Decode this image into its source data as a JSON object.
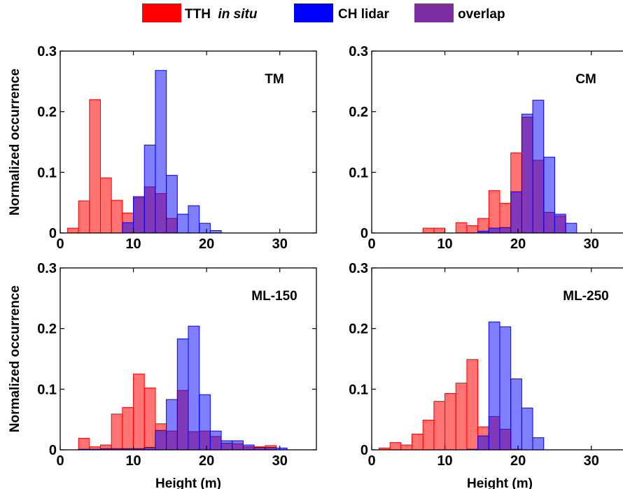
{
  "colors": {
    "in_situ": "#ff0000",
    "lidar": "#0000ff",
    "overlap": "#7b2fa0"
  },
  "legend": [
    {
      "label": "TTH",
      "label_italic": "in situ",
      "color_key": "in_situ"
    },
    {
      "label": "CH lidar",
      "color_key": "lidar"
    },
    {
      "label": "overlap",
      "color_key": "overlap"
    }
  ],
  "chart_data": [
    {
      "type": "bar",
      "title": "TM",
      "xlabel": "",
      "ylabel": "Normalized occurrence",
      "xlim": [
        0,
        35
      ],
      "ylim": [
        0,
        0.3
      ],
      "xticks": [
        "0",
        "10",
        "20",
        "30"
      ],
      "yticks": [
        "0",
        "0.1",
        "0.2",
        "0.3"
      ],
      "bin_edges": [
        1,
        2.5,
        4,
        5.5,
        7,
        8.5,
        10,
        11.5,
        13,
        14.5,
        16,
        17.5,
        19,
        20.5,
        22
      ],
      "series": [
        {
          "name": "TTH in situ",
          "values": [
            0.008,
            0.053,
            0.22,
            0.091,
            0.054,
            0.033,
            0.058,
            0.076,
            0.065,
            0.024,
            0,
            0,
            0,
            0
          ]
        },
        {
          "name": "CH lidar",
          "values": [
            0,
            0,
            0,
            0,
            0,
            0.017,
            0.06,
            0.145,
            0.268,
            0.095,
            0.031,
            0.045,
            0.016,
            0.004
          ]
        }
      ]
    },
    {
      "type": "bar",
      "title": "CM",
      "xlabel": "",
      "ylabel": "",
      "xlim": [
        0,
        35
      ],
      "ylim": [
        0,
        0.3
      ],
      "xticks": [
        "0",
        "10",
        "20",
        "30"
      ],
      "yticks": [
        "0",
        "0.1",
        "0.2",
        "0.3"
      ],
      "bin_edges": [
        7,
        8.5,
        10,
        11.5,
        13,
        14.5,
        16,
        17.5,
        19,
        20.5,
        22,
        23.5,
        25,
        26.5,
        28
      ],
      "series": [
        {
          "name": "TTH in situ",
          "values": [
            0.008,
            0.008,
            0,
            0.017,
            0.012,
            0.024,
            0.07,
            0.049,
            0.132,
            0.191,
            0.12,
            0.034,
            0.028,
            0
          ]
        },
        {
          "name": "CH lidar",
          "values": [
            0,
            0,
            0,
            0,
            0,
            0.003,
            0.008,
            0.009,
            0.068,
            0.196,
            0.219,
            0.125,
            0.031,
            0.016
          ]
        }
      ]
    },
    {
      "type": "bar",
      "title": "ML-150",
      "xlabel": "Height (m)",
      "ylabel": "Normalized occurrence",
      "xlim": [
        0,
        35
      ],
      "ylim": [
        0,
        0.3
      ],
      "xticks": [
        "0",
        "10",
        "20",
        "30"
      ],
      "yticks": [
        "0",
        "0.1",
        "0.2",
        "0.3"
      ],
      "bin_edges": [
        2.5,
        4,
        5.5,
        7,
        8.5,
        10,
        11.5,
        13,
        14.5,
        16,
        17.5,
        19,
        20.5,
        22,
        23.5,
        25,
        26.5,
        28,
        29.5,
        31
      ],
      "series": [
        {
          "name": "TTH in situ",
          "values": [
            0.019,
            0.005,
            0.008,
            0.059,
            0.07,
            0.125,
            0.102,
            0.043,
            0.031,
            0.098,
            0.03,
            0.031,
            0.022,
            0.011,
            0.01,
            0.005,
            0.005,
            0.007,
            0
          ]
        },
        {
          "name": "CH lidar",
          "values": [
            0.001,
            0.001,
            0.002,
            0.002,
            0.002,
            0.002,
            0.004,
            0.032,
            0.083,
            0.183,
            0.204,
            0.091,
            0.031,
            0.015,
            0.015,
            0.008,
            0.004,
            0.004,
            0.003
          ]
        }
      ]
    },
    {
      "type": "bar",
      "title": "ML-250",
      "xlabel": "Height (m)",
      "ylabel": "",
      "xlim": [
        0,
        35
      ],
      "ylim": [
        0,
        0.3
      ],
      "xticks": [
        "0",
        "10",
        "20",
        "30"
      ],
      "yticks": [
        "0",
        "0.1",
        "0.2",
        "0.3"
      ],
      "bin_edges": [
        1,
        2.5,
        4,
        5.5,
        7,
        8.5,
        10,
        11.5,
        13,
        14.5,
        16,
        17.5,
        19,
        20.5,
        22,
        23.5
      ],
      "series": [
        {
          "name": "TTH in situ",
          "values": [
            0.003,
            0.012,
            0.008,
            0.026,
            0.049,
            0.08,
            0.093,
            0.11,
            0.149,
            0.038,
            0.055,
            0.034,
            0.001,
            0,
            0
          ]
        },
        {
          "name": "CH lidar",
          "values": [
            0,
            0,
            0,
            0,
            0,
            0,
            0,
            0,
            0.001,
            0.023,
            0.211,
            0.203,
            0.117,
            0.069,
            0.02
          ]
        }
      ]
    }
  ]
}
